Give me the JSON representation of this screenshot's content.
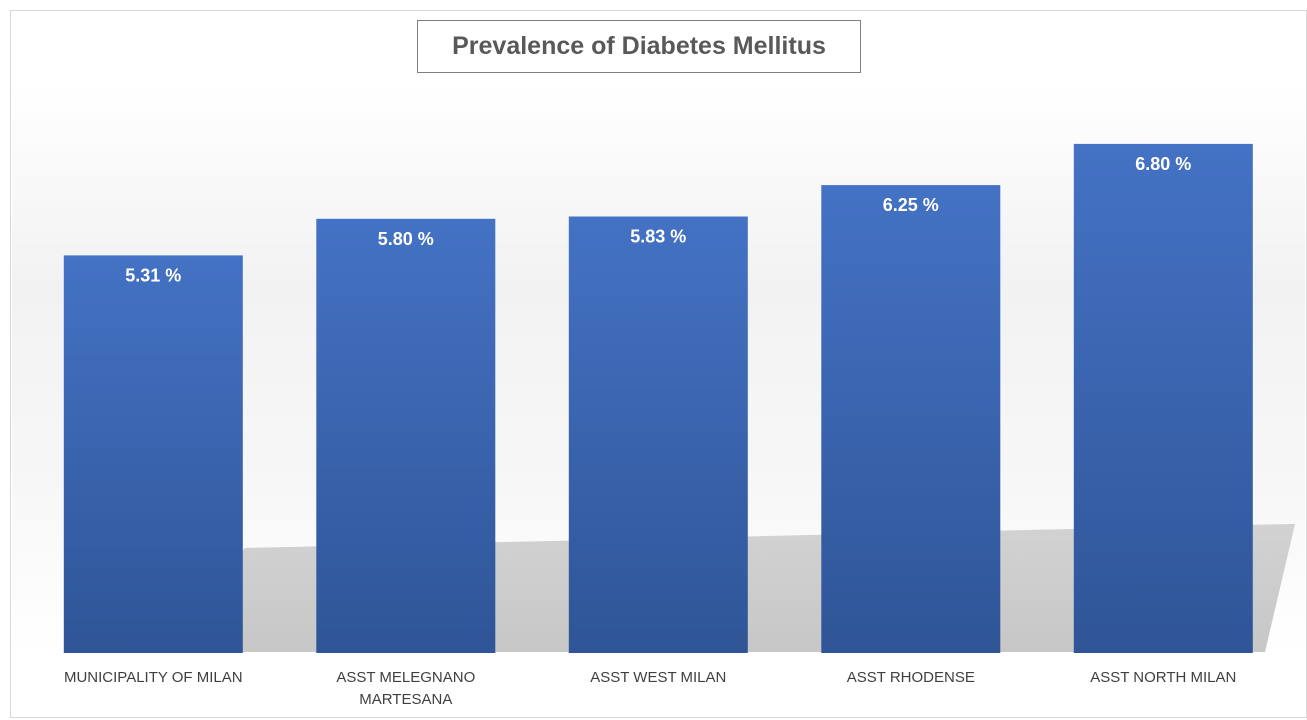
{
  "chart_data": {
    "type": "bar",
    "title": "Prevalence of Diabetes Mellitus",
    "xlabel": "",
    "ylabel": "",
    "categories": [
      [
        "MUNICIPALITY OF MILAN"
      ],
      [
        "ASST MELEGNANO",
        "MARTESANA"
      ],
      [
        "ASST WEST MILAN"
      ],
      [
        "ASST RHODENSE"
      ],
      [
        "ASST NORTH MILAN"
      ]
    ],
    "values": [
      5.31,
      5.8,
      5.83,
      6.25,
      6.8
    ],
    "value_labels": [
      "5.31 %",
      "5.80 %",
      "5.83 %",
      "6.25 %",
      "6.80 %"
    ],
    "ylim": [
      0,
      7.6
    ],
    "grid": false,
    "legend": "none",
    "bar_color_top": "#4472c4",
    "bar_color_bottom": "#2f5597"
  }
}
